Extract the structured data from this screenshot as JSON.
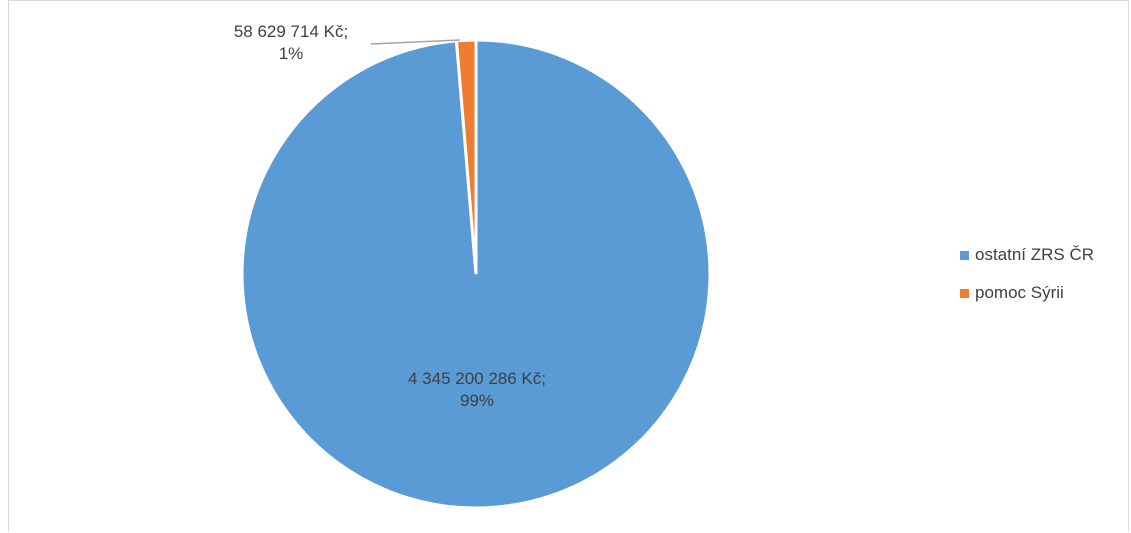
{
  "chart_data": {
    "type": "pie",
    "title": "",
    "categories": [
      "ostatní ZRS ČR",
      "pomoc Sýrii"
    ],
    "values": [
      4345200286,
      58629714
    ],
    "percent_labels": [
      "99%",
      "1%"
    ],
    "value_labels": [
      "4 345 200 286 Kč;",
      "58 629 714 Kč;"
    ],
    "colors": [
      "#5B9BD5",
      "#ED7D31"
    ],
    "legend_position": "right",
    "data_labels": true
  },
  "legend": {
    "items": [
      {
        "label": "ostatní ZRS ČR",
        "color": "#5B9BD5"
      },
      {
        "label": "pomoc Sýrii",
        "color": "#ED7D31"
      }
    ]
  }
}
